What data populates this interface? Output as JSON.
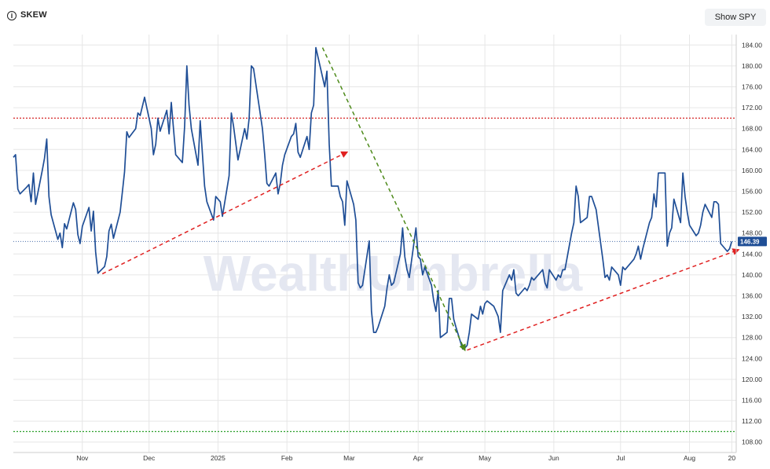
{
  "header": {
    "title": "SKEW",
    "show_spy_label": "Show SPY"
  },
  "watermark": "WealthUmbrella",
  "colors": {
    "line": "#1f4e96",
    "grid": "#e6e6e6",
    "upper_level": "#d62728",
    "lower_level": "#2ca02c",
    "trend_up": "#e02020",
    "trend_down": "#4d8a1a",
    "badge": "#1f4e96"
  },
  "chart_data": {
    "type": "line",
    "title": "SKEW",
    "ylim": [
      106,
      186
    ],
    "yticks": [
      108,
      112,
      116,
      120,
      124,
      128,
      132,
      136,
      140,
      144,
      148,
      152,
      156,
      160,
      164,
      168,
      172,
      176,
      180,
      184
    ],
    "ytick_labels": [
      "108.00",
      "112.00",
      "116.00",
      "120.00",
      "124.00",
      "128.00",
      "132.00",
      "136.00",
      "140.00",
      "144.00",
      "148.00",
      "152.00",
      "156.00",
      "160.00",
      "164.00",
      "168.00",
      "172.00",
      "176.00",
      "180.00",
      "184.00"
    ],
    "x_range": [
      "2024-10-01",
      "2025-08-22"
    ],
    "xticks": [
      {
        "date": "2024-11-01",
        "label": "Nov"
      },
      {
        "date": "2024-12-01",
        "label": "Dec"
      },
      {
        "date": "2025-01-01",
        "label": "2025"
      },
      {
        "date": "2025-02-01",
        "label": "Feb"
      },
      {
        "date": "2025-03-01",
        "label": "Mar"
      },
      {
        "date": "2025-04-01",
        "label": "Apr"
      },
      {
        "date": "2025-05-01",
        "label": "May"
      },
      {
        "date": "2025-06-01",
        "label": "Jun"
      },
      {
        "date": "2025-07-01",
        "label": "Jul"
      },
      {
        "date": "2025-08-01",
        "label": "Aug"
      },
      {
        "date": "2025-08-20",
        "label": "20"
      }
    ],
    "last_value": 146.39,
    "last_value_label": "146.39",
    "horizontal_levels": [
      {
        "value": 170,
        "style": "dotted",
        "color": "#d62728"
      },
      {
        "value": 110,
        "style": "dotted",
        "color": "#2ca02c"
      }
    ],
    "trendlines": [
      {
        "from": {
          "date": "2024-11-10",
          "value": 140.2
        },
        "to": {
          "date": "2025-02-28",
          "value": 163.5
        },
        "color": "#e02020",
        "arrow": "end"
      },
      {
        "from": {
          "date": "2025-02-17",
          "value": 183.5
        },
        "to": {
          "date": "2025-04-22",
          "value": 125.6
        },
        "color": "#4d8a1a",
        "arrow": "end"
      },
      {
        "from": {
          "date": "2025-04-23",
          "value": 125.6
        },
        "to": {
          "date": "2025-08-23",
          "value": 144.8
        },
        "color": "#e02020",
        "arrow": "end"
      }
    ],
    "series": [
      {
        "values": [
          [
            "2024-10-01",
            162.5
          ],
          [
            "2024-10-02",
            163.0
          ],
          [
            "2024-10-03",
            156.4
          ],
          [
            "2024-10-04",
            155.5
          ],
          [
            "2024-10-07",
            156.8
          ],
          [
            "2024-10-08",
            157.3
          ],
          [
            "2024-10-09",
            154.0
          ],
          [
            "2024-10-10",
            159.5
          ],
          [
            "2024-10-11",
            153.5
          ],
          [
            "2024-10-14",
            160.0
          ],
          [
            "2024-10-15",
            162.3
          ],
          [
            "2024-10-16",
            166.0
          ],
          [
            "2024-10-17",
            155.0
          ],
          [
            "2024-10-18",
            151.5
          ],
          [
            "2024-10-21",
            146.8
          ],
          [
            "2024-10-22",
            148.0
          ],
          [
            "2024-10-23",
            145.2
          ],
          [
            "2024-10-24",
            149.8
          ],
          [
            "2024-10-25",
            148.8
          ],
          [
            "2024-10-28",
            153.8
          ],
          [
            "2024-10-29",
            152.5
          ],
          [
            "2024-10-30",
            147.7
          ],
          [
            "2024-10-31",
            146.0
          ],
          [
            "2024-11-01",
            149.3
          ],
          [
            "2024-11-04",
            152.9
          ],
          [
            "2024-11-05",
            148.4
          ],
          [
            "2024-11-06",
            152.2
          ],
          [
            "2024-11-07",
            144.4
          ],
          [
            "2024-11-08",
            140.3
          ],
          [
            "2024-11-11",
            141.6
          ],
          [
            "2024-11-12",
            143.5
          ],
          [
            "2024-11-13",
            148.4
          ],
          [
            "2024-11-14",
            149.7
          ],
          [
            "2024-11-15",
            147.0
          ],
          [
            "2024-11-18",
            152.0
          ],
          [
            "2024-11-19",
            155.8
          ],
          [
            "2024-11-20",
            159.7
          ],
          [
            "2024-11-21",
            167.4
          ],
          [
            "2024-11-22",
            166.3
          ],
          [
            "2024-11-25",
            168.0
          ],
          [
            "2024-11-26",
            171.0
          ],
          [
            "2024-11-27",
            170.5
          ],
          [
            "2024-11-29",
            174.0
          ],
          [
            "2024-12-02",
            168.0
          ],
          [
            "2024-12-03",
            163.0
          ],
          [
            "2024-12-04",
            165.0
          ],
          [
            "2024-12-05",
            170.0
          ],
          [
            "2024-12-06",
            167.5
          ],
          [
            "2024-12-09",
            171.5
          ],
          [
            "2024-12-10",
            167.0
          ],
          [
            "2024-12-11",
            173.0
          ],
          [
            "2024-12-12",
            168.0
          ],
          [
            "2024-12-13",
            163.0
          ],
          [
            "2024-12-16",
            161.5
          ],
          [
            "2024-12-17",
            168.5
          ],
          [
            "2024-12-18",
            180.0
          ],
          [
            "2024-12-19",
            172.5
          ],
          [
            "2024-12-20",
            168.0
          ],
          [
            "2024-12-23",
            161.0
          ],
          [
            "2024-12-24",
            169.5
          ],
          [
            "2024-12-26",
            157.0
          ],
          [
            "2024-12-27",
            154.0
          ],
          [
            "2024-12-30",
            150.5
          ],
          [
            "2024-12-31",
            155.0
          ],
          [
            "2025-01-02",
            154.0
          ],
          [
            "2025-01-03",
            151.2
          ],
          [
            "2025-01-06",
            159.0
          ],
          [
            "2025-01-07",
            171.0
          ],
          [
            "2025-01-08",
            168.5
          ],
          [
            "2025-01-10",
            162.0
          ],
          [
            "2025-01-13",
            168.0
          ],
          [
            "2025-01-14",
            166.0
          ],
          [
            "2025-01-15",
            170.0
          ],
          [
            "2025-01-16",
            180.0
          ],
          [
            "2025-01-17",
            179.5
          ],
          [
            "2025-01-21",
            168.0
          ],
          [
            "2025-01-22",
            163.0
          ],
          [
            "2025-01-23",
            157.5
          ],
          [
            "2025-01-24",
            157.0
          ],
          [
            "2025-01-27",
            159.5
          ],
          [
            "2025-01-28",
            155.5
          ],
          [
            "2025-01-29",
            157.5
          ],
          [
            "2025-01-30",
            161.0
          ],
          [
            "2025-01-31",
            163.0
          ],
          [
            "2025-02-03",
            166.5
          ],
          [
            "2025-02-04",
            167.0
          ],
          [
            "2025-02-05",
            169.0
          ],
          [
            "2025-02-06",
            163.5
          ],
          [
            "2025-02-07",
            162.5
          ],
          [
            "2025-02-10",
            166.5
          ],
          [
            "2025-02-11",
            164.0
          ],
          [
            "2025-02-12",
            171.0
          ],
          [
            "2025-02-13",
            172.5
          ],
          [
            "2025-02-14",
            183.5
          ],
          [
            "2025-02-18",
            176.0
          ],
          [
            "2025-02-19",
            179.0
          ],
          [
            "2025-02-20",
            165.0
          ],
          [
            "2025-02-21",
            157.0
          ],
          [
            "2025-02-24",
            157.0
          ],
          [
            "2025-02-25",
            155.0
          ],
          [
            "2025-02-26",
            154.0
          ],
          [
            "2025-02-27",
            149.5
          ],
          [
            "2025-02-28",
            158.0
          ],
          [
            "2025-03-03",
            153.5
          ],
          [
            "2025-03-04",
            150.5
          ],
          [
            "2025-03-05",
            138.5
          ],
          [
            "2025-03-06",
            137.5
          ],
          [
            "2025-03-07",
            138.0
          ],
          [
            "2025-03-10",
            146.5
          ],
          [
            "2025-03-11",
            133.0
          ],
          [
            "2025-03-12",
            129.0
          ],
          [
            "2025-03-13",
            129.0
          ],
          [
            "2025-03-14",
            130.0
          ],
          [
            "2025-03-17",
            134.0
          ],
          [
            "2025-03-18",
            137.5
          ],
          [
            "2025-03-19",
            140.0
          ],
          [
            "2025-03-20",
            138.0
          ],
          [
            "2025-03-21",
            138.5
          ],
          [
            "2025-03-24",
            144.0
          ],
          [
            "2025-03-25",
            149.0
          ],
          [
            "2025-03-26",
            143.5
          ],
          [
            "2025-03-27",
            141.0
          ],
          [
            "2025-03-28",
            139.5
          ],
          [
            "2025-03-31",
            149.0
          ],
          [
            "2025-04-01",
            143.5
          ],
          [
            "2025-04-02",
            143.0
          ],
          [
            "2025-04-03",
            140.0
          ],
          [
            "2025-04-04",
            141.5
          ],
          [
            "2025-04-07",
            138.0
          ],
          [
            "2025-04-08",
            135.0
          ],
          [
            "2025-04-09",
            133.0
          ],
          [
            "2025-04-10",
            137.0
          ],
          [
            "2025-04-11",
            128.0
          ],
          [
            "2025-04-14",
            129.0
          ],
          [
            "2025-04-15",
            135.5
          ],
          [
            "2025-04-16",
            135.5
          ],
          [
            "2025-04-17",
            131.5
          ],
          [
            "2025-04-18",
            130.0
          ],
          [
            "2025-04-21",
            125.8
          ],
          [
            "2025-04-22",
            126.0
          ],
          [
            "2025-04-23",
            126.5
          ],
          [
            "2025-04-24",
            129.0
          ],
          [
            "2025-04-25",
            132.5
          ],
          [
            "2025-04-28",
            131.5
          ],
          [
            "2025-04-29",
            134.0
          ],
          [
            "2025-04-30",
            132.5
          ],
          [
            "2025-05-01",
            134.5
          ],
          [
            "2025-05-02",
            135.0
          ],
          [
            "2025-05-05",
            134.0
          ],
          [
            "2025-05-06",
            133.0
          ],
          [
            "2025-05-07",
            132.0
          ],
          [
            "2025-05-08",
            129.0
          ],
          [
            "2025-05-09",
            137.0
          ],
          [
            "2025-05-12",
            140.0
          ],
          [
            "2025-05-13",
            139.0
          ],
          [
            "2025-05-14",
            141.0
          ],
          [
            "2025-05-15",
            136.5
          ],
          [
            "2025-05-16",
            136.0
          ],
          [
            "2025-05-19",
            137.5
          ],
          [
            "2025-05-20",
            137.0
          ],
          [
            "2025-05-21",
            138.0
          ],
          [
            "2025-05-22",
            139.5
          ],
          [
            "2025-05-23",
            139.0
          ],
          [
            "2025-05-27",
            141.0
          ],
          [
            "2025-05-28",
            138.5
          ],
          [
            "2025-05-29",
            137.5
          ],
          [
            "2025-05-30",
            141.0
          ],
          [
            "2025-06-02",
            139.0
          ],
          [
            "2025-06-03",
            140.0
          ],
          [
            "2025-06-04",
            139.5
          ],
          [
            "2025-06-05",
            141.0
          ],
          [
            "2025-06-06",
            141.0
          ],
          [
            "2025-06-09",
            148.0
          ],
          [
            "2025-06-10",
            150.0
          ],
          [
            "2025-06-11",
            157.0
          ],
          [
            "2025-06-12",
            155.0
          ],
          [
            "2025-06-13",
            150.0
          ],
          [
            "2025-06-16",
            151.0
          ],
          [
            "2025-06-17",
            155.0
          ],
          [
            "2025-06-18",
            155.0
          ],
          [
            "2025-06-20",
            152.5
          ],
          [
            "2025-06-23",
            143.0
          ],
          [
            "2025-06-24",
            139.5
          ],
          [
            "2025-06-25",
            140.0
          ],
          [
            "2025-06-26",
            139.0
          ],
          [
            "2025-06-27",
            141.5
          ],
          [
            "2025-06-30",
            140.0
          ],
          [
            "2025-07-01",
            138.0
          ],
          [
            "2025-07-02",
            141.5
          ],
          [
            "2025-07-03",
            141.0
          ],
          [
            "2025-07-07",
            143.0
          ],
          [
            "2025-07-08",
            144.0
          ],
          [
            "2025-07-09",
            145.5
          ],
          [
            "2025-07-10",
            143.0
          ],
          [
            "2025-07-11",
            145.0
          ],
          [
            "2025-07-14",
            150.0
          ],
          [
            "2025-07-15",
            151.0
          ],
          [
            "2025-07-16",
            155.5
          ],
          [
            "2025-07-17",
            153.0
          ],
          [
            "2025-07-18",
            159.5
          ],
          [
            "2025-07-21",
            159.5
          ],
          [
            "2025-07-22",
            145.5
          ],
          [
            "2025-07-23",
            148.0
          ],
          [
            "2025-07-24",
            149.0
          ],
          [
            "2025-07-25",
            154.5
          ],
          [
            "2025-07-28",
            150.0
          ],
          [
            "2025-07-29",
            159.5
          ],
          [
            "2025-07-30",
            155.0
          ],
          [
            "2025-07-31",
            152.0
          ],
          [
            "2025-08-01",
            149.5
          ],
          [
            "2025-08-04",
            147.5
          ],
          [
            "2025-08-05",
            148.0
          ],
          [
            "2025-08-06",
            149.5
          ],
          [
            "2025-08-07",
            152.0
          ],
          [
            "2025-08-08",
            153.5
          ],
          [
            "2025-08-11",
            151.0
          ],
          [
            "2025-08-12",
            154.0
          ],
          [
            "2025-08-13",
            154.0
          ],
          [
            "2025-08-14",
            153.5
          ],
          [
            "2025-08-15",
            146.0
          ],
          [
            "2025-08-18",
            144.5
          ],
          [
            "2025-08-19",
            145.0
          ],
          [
            "2025-08-20",
            146.39
          ]
        ]
      }
    ],
    "grid": true
  }
}
